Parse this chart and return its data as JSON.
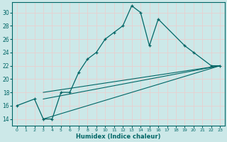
{
  "xlabel": "Humidex (Indice chaleur)",
  "bg_color": "#cce8e8",
  "grid_color": "#d8eded",
  "line_color": "#006666",
  "xlim": [
    -0.5,
    23.5
  ],
  "ylim": [
    13,
    31.5
  ],
  "yticks": [
    14,
    16,
    18,
    20,
    22,
    24,
    26,
    28,
    30
  ],
  "xticks": [
    0,
    1,
    2,
    3,
    4,
    5,
    6,
    7,
    8,
    9,
    10,
    11,
    12,
    13,
    14,
    15,
    16,
    17,
    18,
    19,
    20,
    21,
    22,
    23
  ],
  "series_main": {
    "x": [
      0,
      2,
      3,
      4,
      5,
      6,
      7,
      8,
      9,
      10,
      11,
      12,
      13,
      14,
      15,
      16,
      19,
      20,
      22,
      23
    ],
    "y": [
      16,
      17,
      14,
      14,
      18,
      18,
      21,
      23,
      24,
      26,
      27,
      28,
      31,
      30,
      25,
      29,
      25,
      24,
      22,
      22
    ]
  },
  "series_lines": [
    {
      "x": [
        3,
        23
      ],
      "y": [
        18,
        22
      ]
    },
    {
      "x": [
        3,
        23
      ],
      "y": [
        17,
        22
      ]
    },
    {
      "x": [
        3,
        23
      ],
      "y": [
        14,
        22
      ]
    }
  ]
}
